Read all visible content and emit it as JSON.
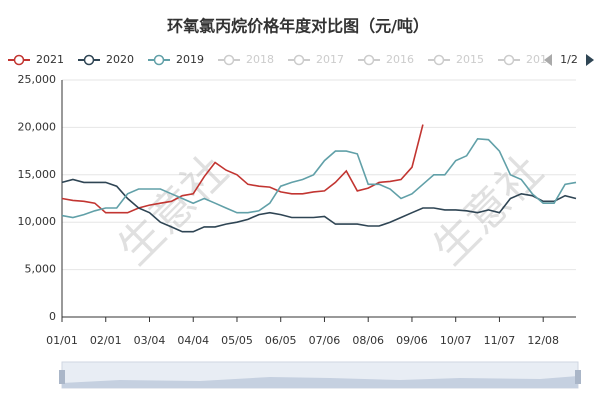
{
  "chart_data": {
    "type": "line",
    "title": "环氧氯丙烷价格年度对比图（元/吨）",
    "categories": [
      "01/01",
      null,
      null,
      null,
      "02/01",
      null,
      null,
      null,
      "03/04",
      null,
      null,
      null,
      "04/04",
      null,
      null,
      null,
      "05/05",
      null,
      null,
      null,
      "06/05",
      null,
      null,
      null,
      "07/06",
      null,
      null,
      null,
      "08/06",
      null,
      null,
      null,
      "09/06",
      null,
      null,
      null,
      "10/07",
      null,
      null,
      null,
      "11/07",
      null,
      null,
      null,
      "12/08",
      null,
      null,
      null
    ],
    "series": [
      {
        "name": "2021",
        "color": "#c23531",
        "values": [
          12500,
          12300,
          12200,
          12000,
          11000,
          11000,
          11000,
          11500,
          11800,
          12000,
          12200,
          12800,
          13000,
          14800,
          16300,
          15500,
          15000,
          14000,
          13800,
          13700,
          13200,
          13000,
          13000,
          13200,
          13300,
          14200,
          15400,
          13300,
          13600,
          14200,
          14300,
          14500,
          15800,
          20300,
          null,
          null,
          null,
          null,
          null,
          null,
          null,
          null,
          null,
          null,
          null,
          null,
          null,
          null
        ]
      },
      {
        "name": "2020",
        "color": "#2f4554",
        "values": [
          14200,
          14500,
          14200,
          14200,
          14200,
          13800,
          12500,
          11500,
          11000,
          10000,
          9500,
          9000,
          9000,
          9500,
          9500,
          9800,
          10000,
          10300,
          10800,
          11000,
          10800,
          10500,
          10500,
          10500,
          10600,
          9800,
          9800,
          9800,
          9600,
          9600,
          10000,
          10500,
          11000,
          11500,
          11500,
          11300,
          11300,
          11200,
          11000,
          11300,
          11000,
          12500,
          13000,
          12800,
          12200,
          12200,
          12800,
          12500
        ]
      },
      {
        "name": "2019",
        "color": "#61a0a8",
        "values": [
          10700,
          10500,
          10800,
          11200,
          11500,
          11500,
          13000,
          13500,
          13500,
          13500,
          13000,
          12500,
          12000,
          12500,
          12000,
          11500,
          11000,
          11000,
          11200,
          12000,
          13800,
          14200,
          14500,
          15000,
          16500,
          17500,
          17500,
          17200,
          14000,
          14000,
          13500,
          12500,
          13000,
          14000,
          15000,
          15000,
          16500,
          17000,
          18800,
          18700,
          17500,
          15000,
          14500,
          13000,
          12000,
          12000,
          14000,
          14200
        ]
      }
    ],
    "legend_inactive": [
      "2018",
      "2017",
      "2016",
      "2015",
      "201"
    ],
    "legend_page": "1/2",
    "watermark": "生意社",
    "ylim": [
      0,
      25000
    ],
    "yticks": [
      0,
      {
        "value": 5000,
        "label": "5,000"
      },
      {
        "value": 10000,
        "label": "10,000"
      },
      {
        "value": 15000,
        "label": "15,000"
      },
      {
        "value": 20000,
        "label": "20,000"
      },
      {
        "value": 25000,
        "label": "25,000"
      }
    ],
    "grid": true
  }
}
